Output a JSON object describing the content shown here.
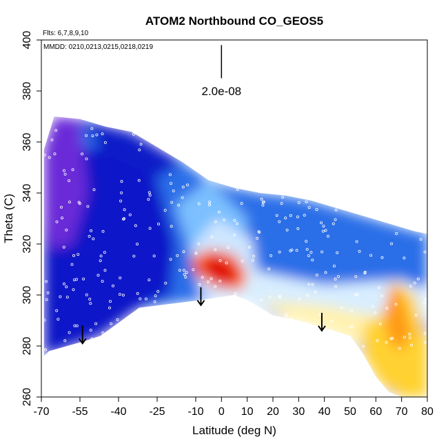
{
  "chart_data": {
    "type": "heatmap",
    "title": "ATOM2 Northbound CO_GEOS5",
    "flights_note": "Flts: 6,7,8,9,10",
    "dates_note": "MMDD: 0210,0213,0215,0218,0219",
    "xlabel": "Latitude (deg N)",
    "ylabel": "Theta (C)",
    "xlim": [
      -70,
      80
    ],
    "ylim": [
      260,
      400
    ],
    "x_ticks": [
      -70,
      -55,
      -40,
      -25,
      -10,
      0,
      10,
      20,
      30,
      40,
      50,
      60,
      70,
      80
    ],
    "y_ticks": [
      260,
      280,
      300,
      320,
      340,
      360,
      380,
      400
    ],
    "scale_bar_label": "2.0e-08",
    "grid": false,
    "envelope": {
      "top": [
        [
          -69,
          357
        ],
        [
          -65,
          370
        ],
        [
          -55,
          369
        ],
        [
          -45,
          366
        ],
        [
          -35,
          364
        ],
        [
          -25,
          358
        ],
        [
          -15,
          352
        ],
        [
          -5,
          345
        ],
        [
          5,
          342
        ],
        [
          15,
          340
        ],
        [
          25,
          339
        ],
        [
          35,
          337
        ],
        [
          45,
          334
        ],
        [
          55,
          331
        ],
        [
          65,
          328
        ],
        [
          75,
          325
        ],
        [
          80,
          324
        ]
      ],
      "bottom": [
        [
          80,
          260
        ],
        [
          70,
          260
        ],
        [
          65,
          262
        ],
        [
          60,
          268
        ],
        [
          55,
          277
        ],
        [
          50,
          284
        ],
        [
          40,
          287
        ],
        [
          30,
          290
        ],
        [
          20,
          292
        ],
        [
          10,
          298
        ],
        [
          5,
          300
        ],
        [
          -8,
          298
        ],
        [
          -32,
          295
        ],
        [
          -47,
          284
        ],
        [
          -53,
          282
        ],
        [
          -60,
          280
        ],
        [
          -67,
          278
        ],
        [
          -69,
          276
        ]
      ]
    },
    "color_regions": [
      {
        "name": "background-blue",
        "color": "#2a6ee8",
        "points": []
      },
      {
        "name": "west-dark-blue",
        "color": "#0a16c8",
        "points": [
          [
            -69,
            357
          ],
          [
            -40,
            358
          ],
          [
            -25,
            345
          ],
          [
            -18,
            320
          ],
          [
            -20,
            300
          ],
          [
            -32,
            295
          ],
          [
            -47,
            284
          ],
          [
            -69,
            276
          ]
        ]
      },
      {
        "name": "west-purple",
        "color": "#6a2ad8",
        "points": [
          [
            -69,
            357
          ],
          [
            -65,
            370
          ],
          [
            -55,
            369
          ],
          [
            -52,
            340
          ],
          [
            -58,
            320
          ],
          [
            -66,
            318
          ],
          [
            -69,
            330
          ]
        ]
      },
      {
        "name": "top-dark-blue",
        "color": "#0a1ac8",
        "points": [
          [
            -55,
            369
          ],
          [
            -35,
            364
          ],
          [
            -15,
            352
          ],
          [
            -25,
            346
          ],
          [
            -45,
            355
          ]
        ]
      },
      {
        "name": "mid-light-blue",
        "color": "#7cc0ff",
        "points": [
          [
            -18,
            335
          ],
          [
            -5,
            345
          ],
          [
            10,
            330
          ],
          [
            8,
            312
          ],
          [
            -2,
            305
          ],
          [
            -12,
            318
          ]
        ]
      },
      {
        "name": "center-pale",
        "color": "#cfe6ff",
        "points": [
          [
            -12,
            318
          ],
          [
            -2,
            330
          ],
          [
            12,
            322
          ],
          [
            15,
            300
          ],
          [
            5,
            298
          ],
          [
            -8,
            300
          ]
        ]
      },
      {
        "name": "east-pale-band",
        "color": "#d8eeff",
        "points": [
          [
            0,
            312
          ],
          [
            40,
            304
          ],
          [
            70,
            306
          ],
          [
            80,
            302
          ],
          [
            80,
            290
          ],
          [
            60,
            290
          ],
          [
            40,
            291
          ],
          [
            20,
            293
          ],
          [
            5,
            300
          ]
        ]
      },
      {
        "name": "east-light-yellow",
        "color": "#fff2b0",
        "points": [
          [
            15,
            298
          ],
          [
            40,
            296
          ],
          [
            60,
            292
          ],
          [
            72,
            290
          ],
          [
            65,
            270
          ],
          [
            55,
            280
          ],
          [
            40,
            287
          ],
          [
            25,
            291
          ]
        ]
      },
      {
        "name": "east-gold",
        "color": "#ffd230",
        "points": [
          [
            55,
            288
          ],
          [
            62,
            292
          ],
          [
            68,
            305
          ],
          [
            75,
            300
          ],
          [
            80,
            282
          ],
          [
            80,
            260
          ],
          [
            70,
            260
          ],
          [
            62,
            265
          ],
          [
            55,
            277
          ]
        ]
      },
      {
        "name": "east-orange",
        "color": "#ff9a18",
        "points": [
          [
            63,
            292
          ],
          [
            66,
            305
          ],
          [
            70,
            300
          ],
          [
            74,
            285
          ],
          [
            70,
            278
          ],
          [
            65,
            282
          ]
        ]
      },
      {
        "name": "max-orange",
        "color": "#ff6a10",
        "points": [
          [
            -12,
            314
          ],
          [
            -5,
            318
          ],
          [
            5,
            316
          ],
          [
            10,
            308
          ],
          [
            8,
            302
          ],
          [
            -2,
            303
          ],
          [
            -10,
            308
          ]
        ]
      },
      {
        "name": "max-red",
        "color": "#e01010",
        "points": [
          [
            -7,
            314
          ],
          [
            -2,
            316
          ],
          [
            3,
            313
          ],
          [
            7,
            309
          ],
          [
            4,
            304
          ],
          [
            -3,
            305
          ],
          [
            -7,
            309
          ]
        ]
      }
    ],
    "arrows": [
      {
        "lat": -54,
        "theta_top": 288,
        "theta_bottom": 281
      },
      {
        "lat": -8,
        "theta_top": 303,
        "theta_bottom": 296
      },
      {
        "lat": 39,
        "theta_top": 293,
        "theta_bottom": 286
      }
    ],
    "scale_bar": {
      "lat": 0,
      "theta_top": 398,
      "theta_bottom": 385,
      "label_theta": 380
    },
    "sample_count": 420,
    "sample_color": "#ffffff"
  }
}
